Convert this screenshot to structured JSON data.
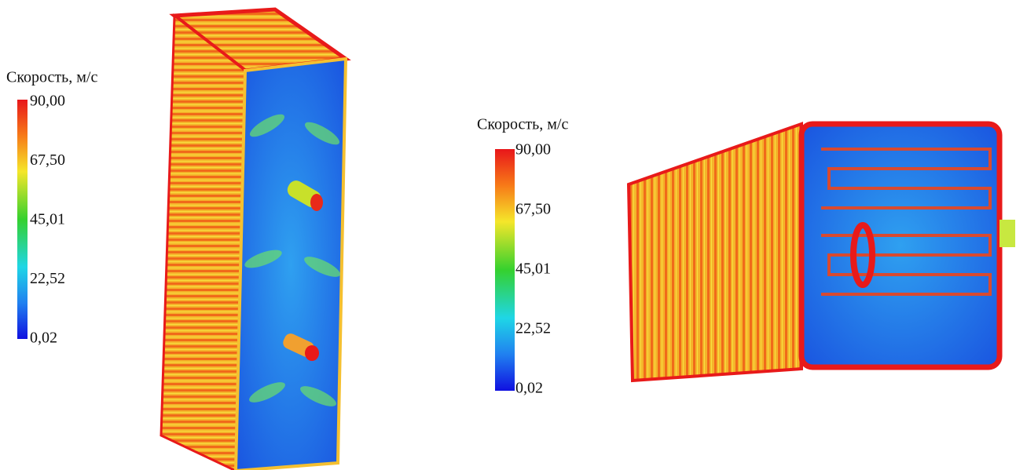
{
  "legends": [
    {
      "title": "Скорость, м/с",
      "ticks": [
        "90,00",
        "67,50",
        "45,01",
        "22,52",
        "0,02"
      ]
    },
    {
      "title": "Скорость, м/с",
      "ticks": [
        "90,00",
        "67,50",
        "45,01",
        "22,52",
        "0,02"
      ]
    }
  ]
}
